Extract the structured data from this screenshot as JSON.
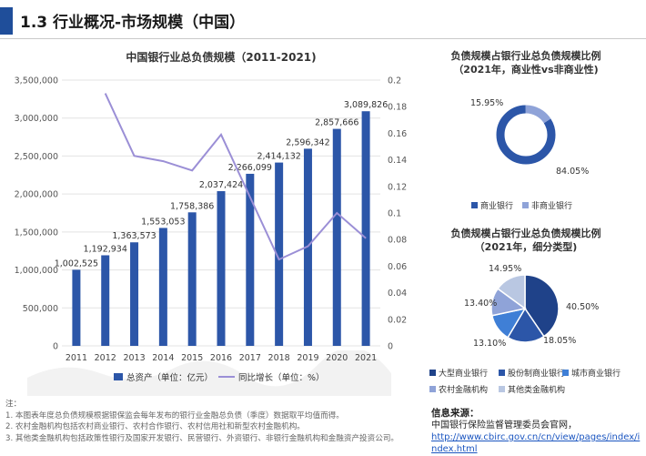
{
  "header": {
    "title": "1.3 行业概况-市场规模（中国）"
  },
  "colors": {
    "bar": "#2c56a8",
    "line": "#9b8fd6",
    "pie1_main": "#2c56a8",
    "pie1_other": "#8fa3d8",
    "donut": [
      "#2c56a8",
      "#8fa3d8"
    ],
    "pie2": [
      "#1f4289",
      "#2c56a8",
      "#3f7fd6",
      "#8fa3d8",
      "#b9c7e2"
    ]
  },
  "chart_data": [
    {
      "type": "bar",
      "title": "中国银行业总负债规模（2011-2021)",
      "categories": [
        "2011",
        "2012",
        "2013",
        "2014",
        "2015",
        "2016",
        "2017",
        "2018",
        "2019",
        "2020",
        "2021"
      ],
      "series": [
        {
          "name": "总资产（单位：亿元）",
          "type": "bar",
          "values": [
            1002525,
            1192934,
            1363573,
            1553053,
            1758386,
            2037424,
            2266099,
            2414132,
            2596342,
            2857666,
            3089826
          ],
          "labels": [
            "1,002,525",
            "1,192,934",
            "1,363,573",
            "1,553,053",
            "1,758,386",
            "2,037,424",
            "2,266,099",
            "2,414,132",
            "2,596,342",
            "2,857,666",
            "3,089,826"
          ]
        },
        {
          "name": "同比增长（单位：%）",
          "type": "line",
          "axis": "right",
          "values": [
            null,
            0.19,
            0.143,
            0.139,
            0.132,
            0.159,
            0.112,
            0.065,
            0.075,
            0.1,
            0.081
          ]
        }
      ],
      "ylim": [
        0,
        3500000
      ],
      "yticks": [
        "0",
        "500,000",
        "1,000,000",
        "1,500,000",
        "2,000,000",
        "2,500,000",
        "3,000,000",
        "3,500,000"
      ],
      "y2lim": [
        0,
        0.2
      ],
      "y2ticks": [
        "0",
        "0.02",
        "0.04",
        "0.06",
        "0.08",
        "0.1",
        "0.12",
        "0.14",
        "0.16",
        "0.18",
        "0.2"
      ],
      "legend": "bottom"
    },
    {
      "type": "pie",
      "title": "负债规模占银行业总负债规模比例（2021年，商业性vs非商业性)",
      "categories": [
        "商业银行",
        "非商业银行"
      ],
      "values": [
        84.05,
        15.95
      ],
      "labels": [
        "84.05%",
        "15.95%"
      ],
      "donut": true,
      "legend": "bottom"
    },
    {
      "type": "pie",
      "title": "负债规模占银行业总负债规模比例（2021年，细分类型)",
      "categories": [
        "大型商业银行",
        "股份制商业银行",
        "城市商业银行",
        "农村金融机构",
        "其他类金融机构"
      ],
      "values": [
        40.5,
        18.05,
        13.1,
        13.4,
        14.95
      ],
      "labels": [
        "40.50%",
        "18.05%",
        "13.10%",
        "13.40%",
        "14.95%"
      ],
      "legend": "bottom"
    }
  ],
  "pie1_title_lines": [
    "负债规模占银行业总负债规模比例",
    "（2021年，商业性vs非商业性)"
  ],
  "pie2_title_lines": [
    "负债规模占银行业总负债规模比例",
    "（2021年，细分类型)"
  ],
  "notes": {
    "label": "注：",
    "items": [
      "1.  本图表年度总负债规模根据银保监会每年发布的银行业金融总负债（季度）数据取平均值而得。",
      "2.  农村金融机构包括农村商业银行、农村合作银行、农村信用社和新型农村金融机构。",
      "3.  其他类金融机构包括政策性银行及国家开发银行、民营银行、外资银行、非银行金融机构和金融资产投资公司。"
    ]
  },
  "source": {
    "title": "信息来源：",
    "org": "中国银行保险监督管理委员会官网，",
    "link": "http://www.cbirc.gov.cn/cn/view/pages/index/index.html"
  }
}
